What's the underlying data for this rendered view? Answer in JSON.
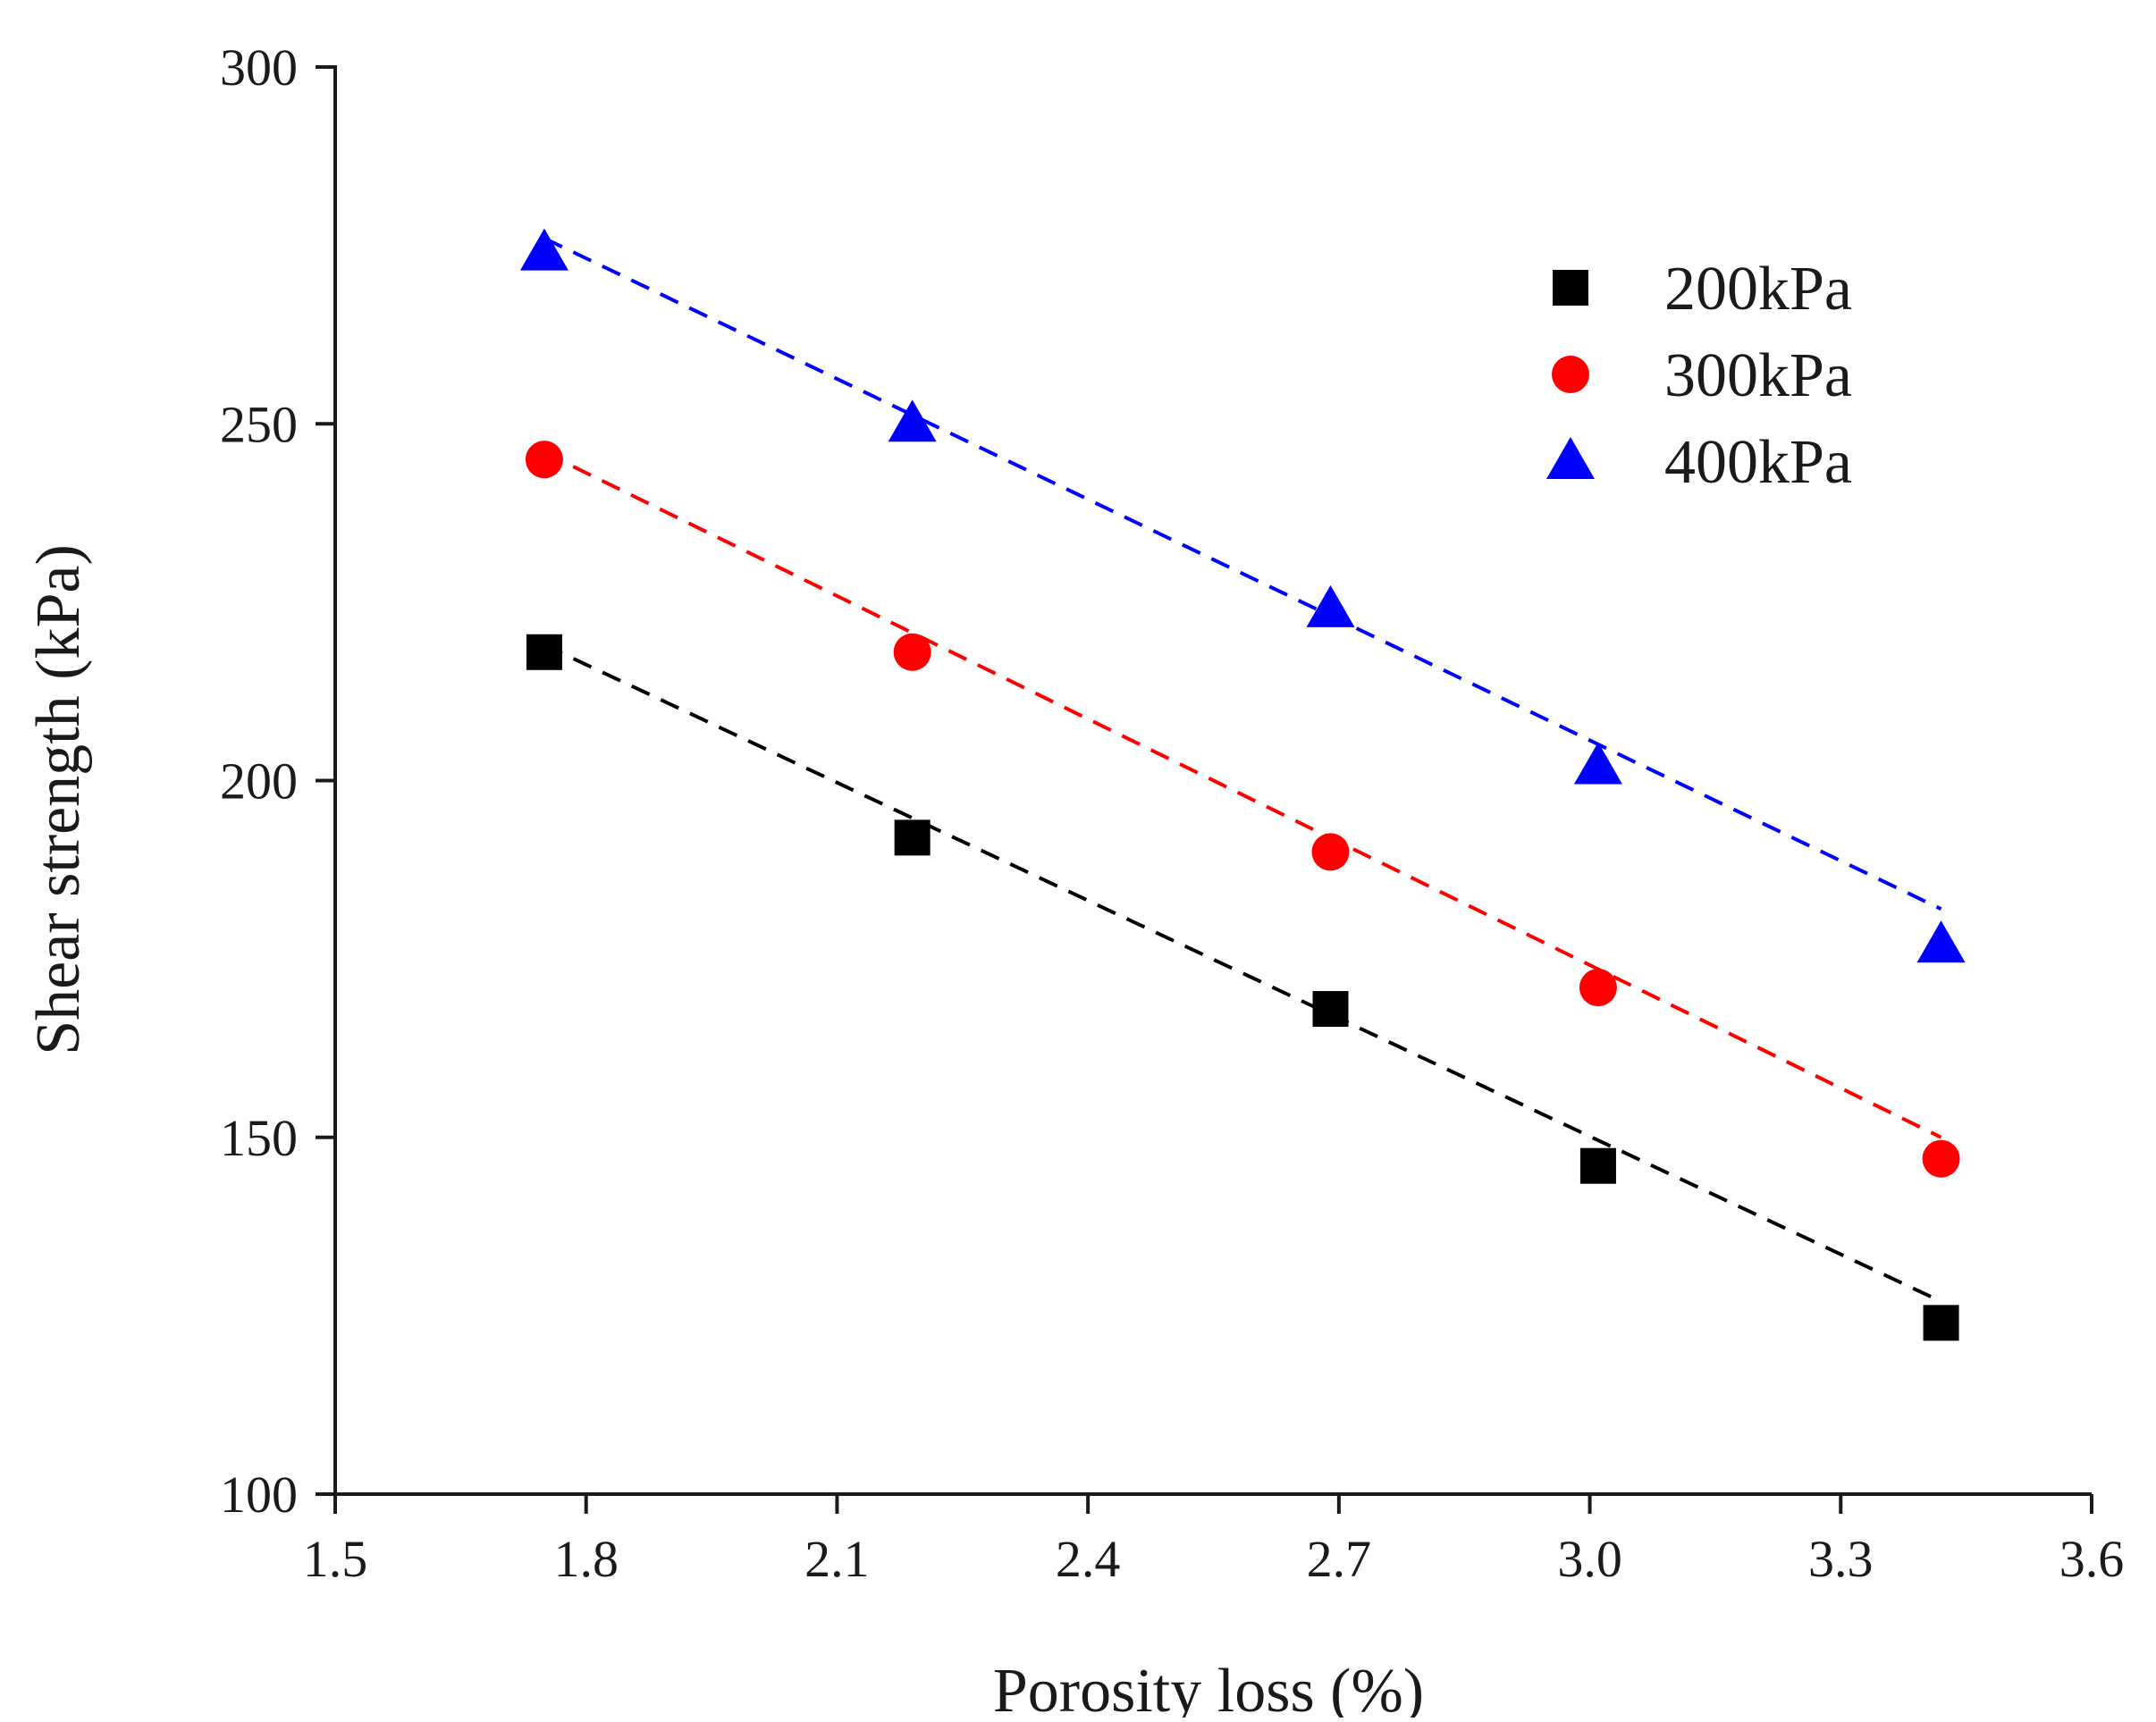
{
  "chart_data": {
    "type": "scatter",
    "title": "",
    "xlabel": "Porosity loss (%)",
    "ylabel": "Shear strength (kPa)",
    "xlim": [
      1.5,
      3.6
    ],
    "ylim": [
      100,
      300
    ],
    "xticks": [
      1.5,
      1.8,
      2.1,
      2.4,
      2.7,
      3.0,
      3.3,
      3.6
    ],
    "xtick_labels": [
      "1.5",
      "1.8",
      "2.1",
      "2.4",
      "2.7",
      "3.0",
      "3.3",
      "3.6"
    ],
    "yticks": [
      100,
      150,
      200,
      250,
      300
    ],
    "ytick_labels": [
      "100",
      "150",
      "200",
      "250",
      "300"
    ],
    "grid": false,
    "legend_position": "top-right",
    "series": [
      {
        "name": "200kPa",
        "marker": "square",
        "color": "#000000",
        "x": [
          1.75,
          2.19,
          2.69,
          3.01,
          3.42
        ],
        "y": [
          218,
          192,
          168,
          146,
          124
        ],
        "fit": {
          "x": [
            1.75,
            3.42
          ],
          "y": [
            219,
            127
          ]
        }
      },
      {
        "name": "300kPa",
        "marker": "circle",
        "color": "#ff0000",
        "x": [
          1.75,
          2.19,
          2.69,
          3.01,
          3.42
        ],
        "y": [
          245,
          218,
          190,
          171,
          147
        ],
        "fit": {
          "x": [
            1.75,
            3.42
          ],
          "y": [
            246,
            150
          ]
        }
      },
      {
        "name": "400kPa",
        "marker": "triangle",
        "color": "#0000ff",
        "x": [
          1.75,
          2.19,
          2.69,
          3.01,
          3.42
        ],
        "y": [
          274,
          250,
          224,
          202,
          177
        ],
        "fit": {
          "x": [
            1.75,
            3.42
          ],
          "y": [
            276,
            182
          ]
        }
      }
    ]
  }
}
